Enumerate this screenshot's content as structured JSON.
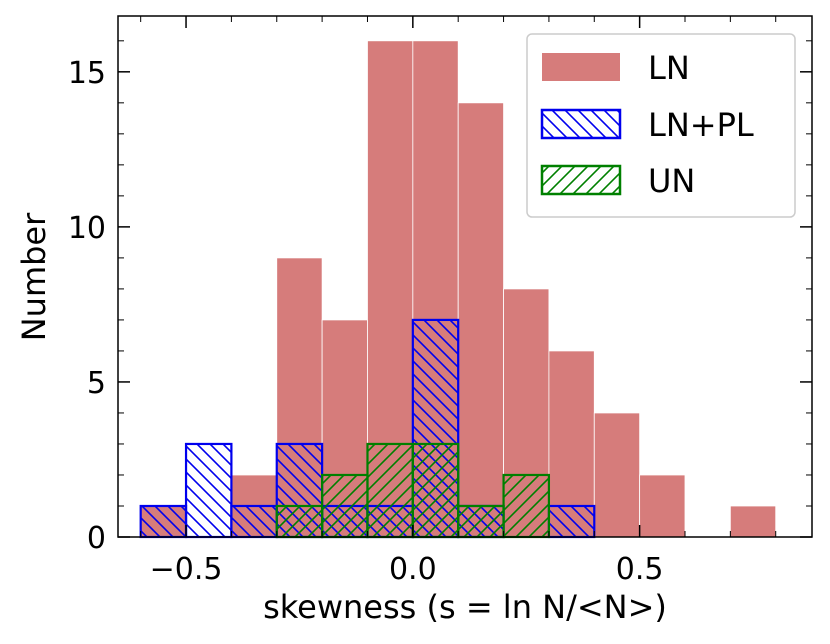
{
  "chart_data": {
    "type": "bar",
    "title": "",
    "xlabel": "skewness (s = ln N/<N>)",
    "ylabel": "Number",
    "xlim": [
      -0.65,
      0.88
    ],
    "ylim": [
      0,
      16.8
    ],
    "bin_width": 0.1,
    "bin_starts": [
      -0.6,
      -0.5,
      -0.4,
      -0.3,
      -0.2,
      -0.1,
      0.0,
      0.1,
      0.2,
      0.3,
      0.4,
      0.5,
      0.6,
      0.7
    ],
    "x_ticks": [
      -0.5,
      0.0,
      0.5
    ],
    "x_tick_labels": [
      "−0.5",
      "0.0",
      "0.5"
    ],
    "y_ticks": [
      0,
      5,
      10,
      15
    ],
    "y_tick_labels": [
      "0",
      "5",
      "10",
      "15"
    ],
    "legend_position": "top-right",
    "series": [
      {
        "name": "LN",
        "style": "filled",
        "color": "#d67c7b",
        "values": [
          1,
          0,
          2,
          9,
          7,
          16,
          16,
          14,
          8,
          6,
          4,
          2,
          0,
          1
        ]
      },
      {
        "name": "LN+PL",
        "style": "hatch-backslash",
        "color": "#0000ee",
        "values": [
          1,
          3,
          1,
          3,
          1,
          1,
          7,
          1,
          0,
          1,
          0,
          0,
          0,
          0
        ]
      },
      {
        "name": "UN",
        "style": "hatch-slash",
        "color": "#008000",
        "values": [
          0,
          0,
          0,
          1,
          2,
          3,
          3,
          1,
          2,
          0,
          0,
          0,
          0,
          0
        ]
      }
    ]
  }
}
